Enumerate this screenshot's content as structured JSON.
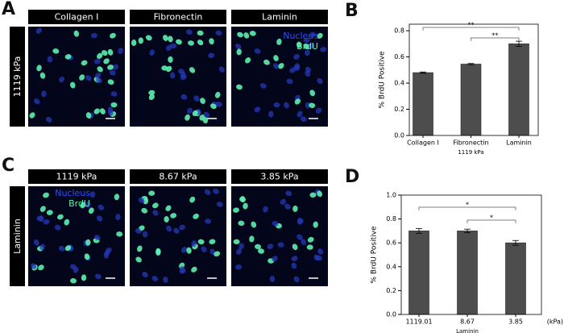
{
  "figure": {
    "panels": [
      "A",
      "B",
      "C",
      "D"
    ],
    "row_a": {
      "label": "1119 kPa",
      "headers": [
        "Collagen I",
        "Fibronectin",
        "Laminin"
      ],
      "legend": [
        "Nucleus",
        "BrdU"
      ]
    },
    "row_c": {
      "label": "Laminin",
      "headers": [
        "1119 kPa",
        "8.67 kPa",
        "3.85 kPa"
      ],
      "legend": [
        "Nucleus",
        "BrdU"
      ]
    }
  },
  "chart_data": [
    {
      "type": "bar",
      "ylabel": "% BrdU Positive",
      "xlabel": "1119 kPa",
      "categories": [
        "Collagen I",
        "Fibronectin",
        "Laminin"
      ],
      "values": [
        0.48,
        0.545,
        0.7
      ],
      "errors": [
        0.005,
        0.005,
        0.02
      ],
      "color": "#4d4d4d",
      "ylim": [
        0,
        0.85
      ],
      "yticks": [
        {
          "value": 0,
          "label": "0.0"
        },
        0.2,
        0.4,
        0.6,
        0.8
      ],
      "annotations": [
        "**",
        "**"
      ]
    },
    {
      "type": "bar",
      "ylabel": "% BrdU Positive",
      "xlabel": "Laminin",
      "x_unit": "(kPa)",
      "categories": [
        "1119.01",
        "8.67",
        "3.85"
      ],
      "values": [
        0.7,
        0.7,
        0.6
      ],
      "errors": [
        0.02,
        0.015,
        0.02
      ],
      "color": "#4d4d4d",
      "ylim": [
        0,
        1.0
      ],
      "yticks": [
        {
          "value": 0,
          "label": "0.0"
        },
        0.2,
        0.4,
        0.6,
        0.8,
        {
          "value": 1,
          "label": "1.0"
        }
      ],
      "annotations": [
        "*",
        "*"
      ]
    }
  ]
}
